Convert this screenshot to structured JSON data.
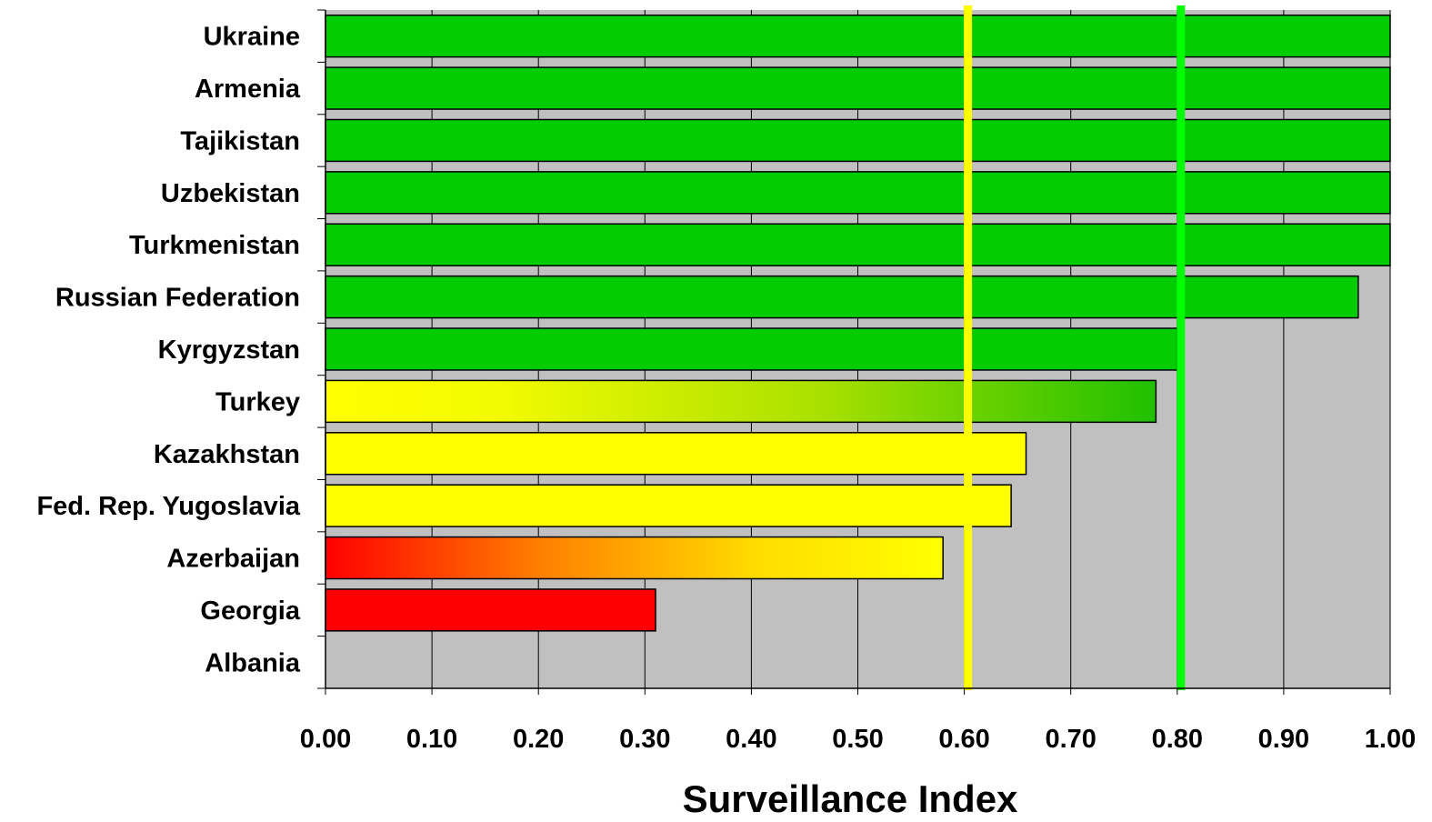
{
  "chart_data": {
    "type": "bar",
    "orientation": "horizontal",
    "title": "",
    "xlabel": "Surveillance Index",
    "ylabel": "",
    "xlim": [
      0,
      1
    ],
    "grid": true,
    "legend": "none",
    "tick_labels": [
      "0.00",
      "0.10",
      "0.20",
      "0.30",
      "0.40",
      "0.50",
      "0.60",
      "0.70",
      "0.80",
      "0.90",
      "1.00"
    ],
    "categories": [
      "Ukraine",
      "Armenia",
      "Tajikistan",
      "Uzbekistan",
      "Turkmenistan",
      "Russian Federation",
      "Kyrgyzstan",
      "Turkey",
      "Kazakhstan",
      "Fed. Rep. Yugoslavia",
      "Azerbaijan",
      "Georgia",
      "Albania"
    ],
    "values": [
      1.0,
      1.0,
      1.0,
      1.0,
      1.0,
      0.97,
      0.8,
      0.78,
      0.658,
      0.644,
      0.58,
      0.31,
      0
    ],
    "bar_fill": [
      "green",
      "green",
      "green",
      "green",
      "green",
      "green",
      "green",
      "yellow-to-green",
      "yellow",
      "yellow",
      "red-to-yellow",
      "red",
      "none"
    ],
    "reference_lines": [
      {
        "x": 0.6,
        "color": "#ffff00"
      },
      {
        "x": 0.8,
        "color": "#00ff00"
      }
    ],
    "colors": {
      "plot_background": "#c0c0c0",
      "green": "#00cc00",
      "yellow": "#ffff00",
      "red": "#ff0000",
      "orange": "#ff9900"
    }
  }
}
